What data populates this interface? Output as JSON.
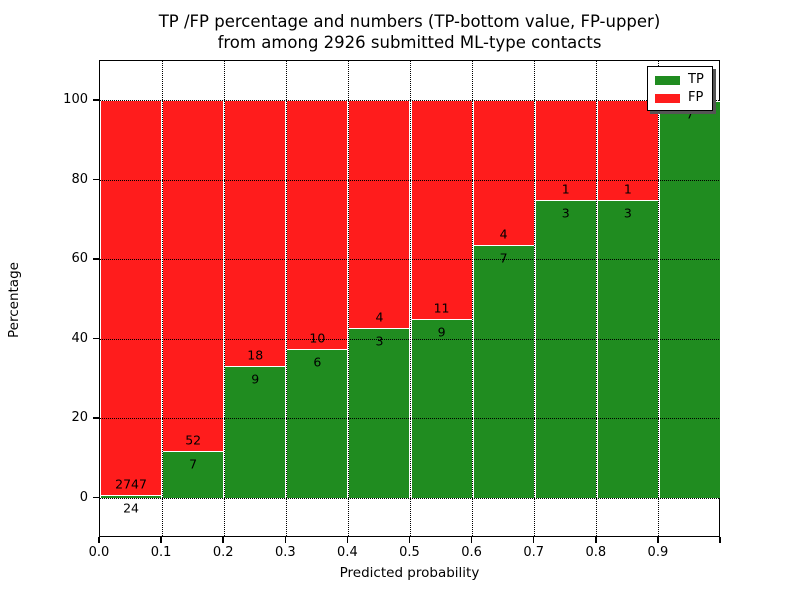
{
  "title": {
    "line1": "TP /FP percentage and numbers (TP-bottom value, FP-upper)",
    "line2": "from among 2926 submitted ML-type contacts"
  },
  "legend": {
    "items": [
      {
        "label": "TP",
        "color": "#208c20"
      },
      {
        "label": "FP",
        "color": "#ff1c1c"
      }
    ]
  },
  "colors": {
    "tp_green": "#208c20",
    "fp_red": "#ff1c1c",
    "background": "#ffffff",
    "spine": "#000000"
  },
  "chart_data": {
    "type": "bar",
    "variant": "stacked-100-percent",
    "title": "TP /FP percentage and numbers (TP-bottom value, FP-upper) from among 2926 submitted ML-type contacts",
    "xlabel": "Predicted probability",
    "ylabel": "Percentage",
    "total_contacts": 2926,
    "xlim": [
      0.0,
      1.0
    ],
    "ylim": [
      -10,
      110
    ],
    "bin_width": 0.1,
    "x_tick_labels": [
      "0.0",
      "0.1",
      "0.2",
      "0.3",
      "0.4",
      "0.5",
      "0.6",
      "0.7",
      "0.8",
      "0.9"
    ],
    "y_tick_values": [
      0,
      20,
      40,
      60,
      80,
      100
    ],
    "grid": true,
    "legend_position": "upper right",
    "bins": [
      "0.0-0.1",
      "0.1-0.2",
      "0.2-0.3",
      "0.3-0.4",
      "0.4-0.5",
      "0.5-0.6",
      "0.6-0.7",
      "0.7-0.8",
      "0.8-0.9",
      "0.9-1.0"
    ],
    "series": [
      {
        "name": "TP",
        "color": "#208c20",
        "counts": [
          24,
          7,
          9,
          6,
          3,
          9,
          7,
          3,
          3,
          7
        ]
      },
      {
        "name": "FP",
        "color": "#ff1c1c",
        "counts": [
          2747,
          52,
          18,
          10,
          4,
          11,
          4,
          1,
          1,
          0
        ]
      }
    ],
    "bar_labels": {
      "tp": [
        "24",
        "7",
        "9",
        "6",
        "3",
        "9",
        "7",
        "3",
        "3",
        "7"
      ],
      "fp": [
        "2747",
        "52",
        "18",
        "10",
        "4",
        "11",
        "4",
        "1",
        "1",
        null
      ]
    }
  }
}
